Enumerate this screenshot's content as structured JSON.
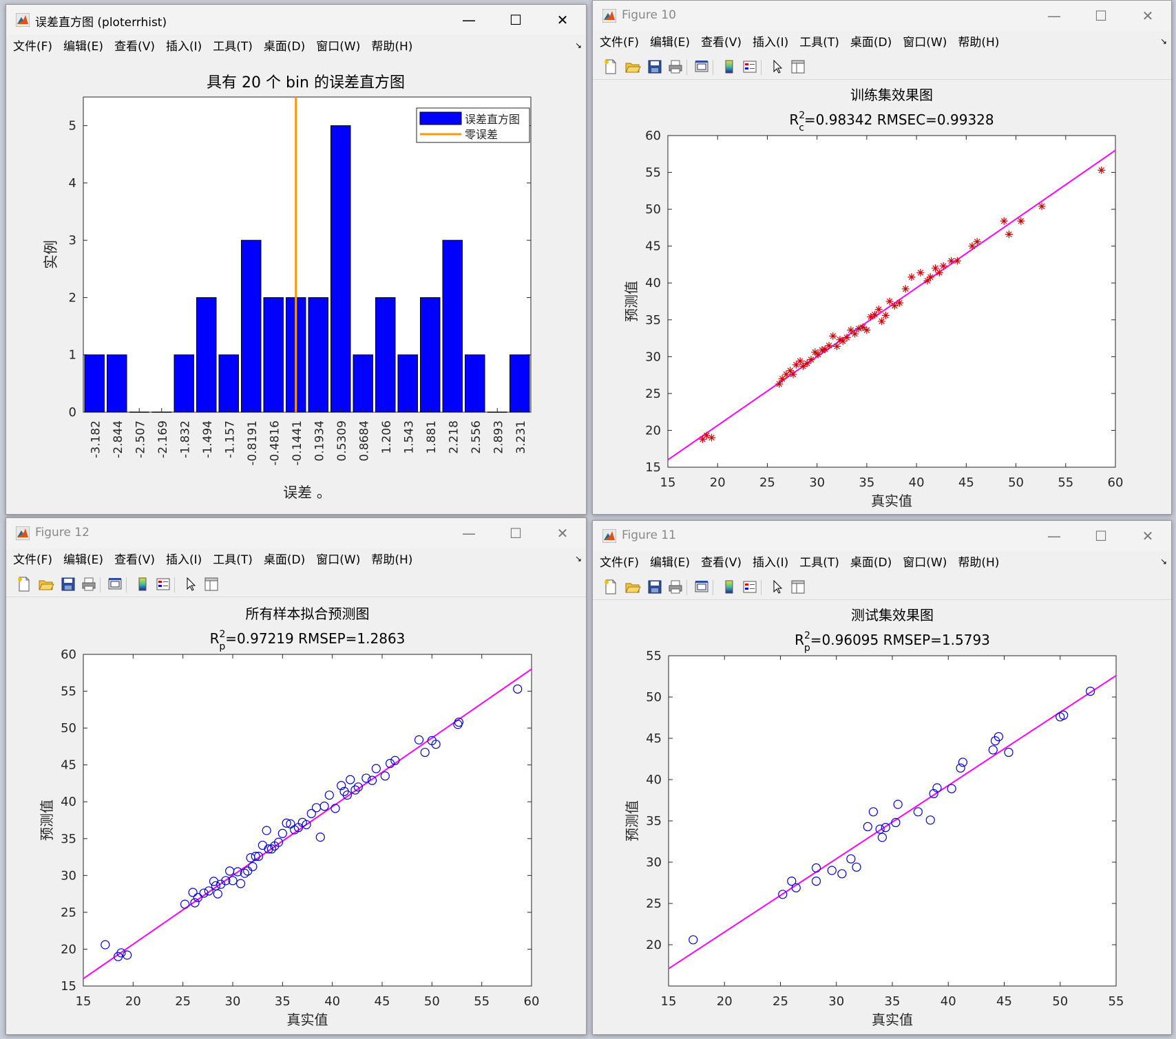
{
  "windows": {
    "hist": {
      "title": "误差直方图 (ploterrhist)",
      "menus": [
        "文件(F)",
        "编辑(E)",
        "查看(V)",
        "插入(I)",
        "工具(T)",
        "桌面(D)",
        "窗口(W)",
        "帮助(H)"
      ]
    },
    "fig10": {
      "title": "Figure 10",
      "menus": [
        "文件(F)",
        "编辑(E)",
        "查看(V)",
        "插入(I)",
        "工具(T)",
        "桌面(D)",
        "窗口(W)",
        "帮助(H)"
      ]
    },
    "fig12": {
      "title": "Figure 12",
      "menus": [
        "文件(F)",
        "编辑(E)",
        "查看(V)",
        "插入(I)",
        "工具(T)",
        "桌面(D)",
        "窗口(W)",
        "帮助(H)"
      ]
    },
    "fig11": {
      "title": "Figure 11",
      "menus": [
        "文件(F)",
        "编辑(E)",
        "查看(V)",
        "插入(I)",
        "工具(T)",
        "桌面(D)",
        "窗口(W)",
        "帮助(H)"
      ]
    }
  },
  "colors": {
    "bar": "#0000ff",
    "zero_line": "#ff9900",
    "fit_line": "#ff00ff",
    "train_marker": "#cc0000",
    "circle_marker": "#0000cc"
  },
  "chart_data": [
    {
      "id": "hist",
      "type": "bar",
      "title": "具有 20 个 bin 的误差直方图",
      "xlabel": "误差 。",
      "ylabel": "实例",
      "categories": [
        "-3.182",
        "-2.844",
        "-2.507",
        "-2.169",
        "-1.832",
        "-1.494",
        "-1.157",
        "-0.8191",
        "-0.4816",
        "-0.1441",
        "0.1934",
        "0.5309",
        "0.8684",
        "1.206",
        "1.543",
        "1.881",
        "2.218",
        "2.556",
        "2.893",
        "3.231"
      ],
      "values": [
        1,
        1,
        0,
        0,
        1,
        2,
        1,
        3,
        2,
        2,
        2,
        5,
        1,
        2,
        1,
        2,
        3,
        1,
        0,
        1
      ],
      "ylim": [
        0,
        5.5
      ],
      "yticks": [
        0,
        1,
        2,
        3,
        4,
        5
      ],
      "zero_error_at": 9.5,
      "legend": [
        "误差直方图",
        "零误差"
      ],
      "legend_position": "top-right"
    },
    {
      "id": "train",
      "type": "scatter",
      "title": "训练集效果图",
      "subtitle_main": "R",
      "subtitle_sup": "2",
      "subtitle_sub": "c",
      "subtitle_rest": "=0.98342  RMSEC=0.99328",
      "xlabel": "真实值",
      "ylabel": "预测值",
      "xlim": [
        15,
        60
      ],
      "ylim": [
        15,
        60
      ],
      "xticks": [
        15,
        20,
        25,
        30,
        35,
        40,
        45,
        50,
        55,
        60
      ],
      "yticks": [
        15,
        20,
        25,
        30,
        35,
        40,
        45,
        50,
        55,
        60
      ],
      "fit_line": [
        [
          15,
          16.0
        ],
        [
          60,
          58.0
        ]
      ],
      "marker": "star",
      "x": [
        18.5,
        18.9,
        19.4,
        26.2,
        26.5,
        26.9,
        27.3,
        27.6,
        27.9,
        28.3,
        28.6,
        29.0,
        29.4,
        29.8,
        30.1,
        30.5,
        30.8,
        31.2,
        31.6,
        32.0,
        32.3,
        32.6,
        33.0,
        33.4,
        33.8,
        34.2,
        34.6,
        35.0,
        35.4,
        35.8,
        36.2,
        36.5,
        36.9,
        37.3,
        37.8,
        38.3,
        38.9,
        39.5,
        40.4,
        41.1,
        41.4,
        41.9,
        42.3,
        42.7,
        43.5,
        44.1,
        45.6,
        46.1,
        48.8,
        49.3,
        50.5,
        52.6,
        58.6
      ],
      "y": [
        18.8,
        19.3,
        19.0,
        26.3,
        27.0,
        27.6,
        28.1,
        27.6,
        28.9,
        29.4,
        28.7,
        29.1,
        29.6,
        30.6,
        30.3,
        30.9,
        31.0,
        31.5,
        32.8,
        31.4,
        32.3,
        32.1,
        32.6,
        33.6,
        33.1,
        33.8,
        34.0,
        33.6,
        35.4,
        35.7,
        36.4,
        34.8,
        35.6,
        37.5,
        36.9,
        37.3,
        39.2,
        40.8,
        41.4,
        40.3,
        40.8,
        42.0,
        41.4,
        42.3,
        43.0,
        43.0,
        45.0,
        45.6,
        48.4,
        46.6,
        48.4,
        50.4,
        55.3
      ]
    },
    {
      "id": "all",
      "type": "scatter",
      "title": "所有样本拟合预测图",
      "subtitle_main": "R",
      "subtitle_sup": "2",
      "subtitle_sub": "p",
      "subtitle_rest": "=0.97219  RMSEP=1.2863",
      "xlabel": "真实值",
      "ylabel": "预测值",
      "xlim": [
        15,
        60
      ],
      "ylim": [
        15,
        60
      ],
      "xticks": [
        15,
        20,
        25,
        30,
        35,
        40,
        45,
        50,
        55,
        60
      ],
      "yticks": [
        15,
        20,
        25,
        30,
        35,
        40,
        45,
        50,
        55,
        60
      ],
      "fit_line": [
        [
          15,
          16.0
        ],
        [
          60,
          58.0
        ]
      ],
      "marker": "circle",
      "x": [
        17.2,
        18.5,
        18.8,
        19.4,
        25.2,
        26.0,
        26.2,
        26.5,
        27.1,
        27.6,
        28.1,
        28.3,
        28.5,
        28.8,
        29.3,
        29.7,
        30.0,
        30.5,
        30.8,
        31.2,
        31.5,
        31.8,
        32.0,
        32.3,
        32.6,
        33.0,
        33.4,
        33.6,
        33.9,
        34.2,
        34.6,
        35.0,
        35.4,
        35.8,
        36.2,
        36.6,
        37.0,
        37.4,
        37.9,
        38.4,
        38.8,
        39.2,
        39.7,
        40.3,
        40.9,
        41.2,
        41.5,
        41.8,
        42.3,
        42.6,
        43.4,
        44.0,
        44.4,
        45.3,
        45.8,
        46.3,
        48.7,
        49.3,
        50.0,
        50.4,
        52.6,
        52.7,
        58.6
      ],
      "y": [
        20.6,
        19.0,
        19.5,
        19.2,
        26.1,
        27.7,
        26.3,
        27.0,
        27.6,
        27.9,
        29.2,
        28.6,
        27.5,
        28.8,
        29.3,
        30.6,
        29.3,
        30.5,
        28.9,
        30.3,
        30.6,
        32.4,
        31.2,
        32.6,
        32.6,
        34.1,
        36.1,
        33.6,
        33.6,
        34.0,
        34.5,
        35.7,
        37.1,
        37.0,
        36.2,
        36.5,
        37.2,
        36.9,
        38.4,
        39.2,
        35.2,
        39.4,
        40.9,
        39.1,
        42.2,
        41.4,
        40.9,
        43.0,
        41.6,
        42.0,
        43.2,
        42.9,
        44.5,
        43.5,
        45.2,
        45.6,
        48.4,
        46.7,
        48.3,
        47.8,
        50.5,
        50.8,
        55.3
      ]
    },
    {
      "id": "test",
      "type": "scatter",
      "title": "测试集效果图",
      "subtitle_main": "R",
      "subtitle_sup": "2",
      "subtitle_sub": "p",
      "subtitle_rest": "=0.96095  RMSEP=1.5793",
      "xlabel": "真实值",
      "ylabel": "预测值",
      "xlim": [
        15,
        55
      ],
      "ylim": [
        15,
        55
      ],
      "xticks": [
        15,
        20,
        25,
        30,
        35,
        40,
        45,
        50,
        55
      ],
      "yticks": [
        20,
        25,
        30,
        35,
        40,
        45,
        50,
        55
      ],
      "fit_line": [
        [
          15,
          17.1
        ],
        [
          55,
          52.6
        ]
      ],
      "marker": "circle",
      "x": [
        17.2,
        25.2,
        26.0,
        26.4,
        28.2,
        28.2,
        29.6,
        30.5,
        31.3,
        31.8,
        32.8,
        33.3,
        33.9,
        34.1,
        34.4,
        35.3,
        35.5,
        37.3,
        38.4,
        38.7,
        39.0,
        40.3,
        41.1,
        41.3,
        44.0,
        44.2,
        44.5,
        45.4,
        50.0,
        50.3,
        52.7
      ],
      "y": [
        20.6,
        26.1,
        27.7,
        26.9,
        29.3,
        27.7,
        29.0,
        28.6,
        30.4,
        29.4,
        34.3,
        36.1,
        34.0,
        33.0,
        34.2,
        34.8,
        37.0,
        36.1,
        35.1,
        38.3,
        39.0,
        38.9,
        41.4,
        42.1,
        43.6,
        44.7,
        45.2,
        43.3,
        47.6,
        47.8,
        50.7
      ]
    }
  ]
}
